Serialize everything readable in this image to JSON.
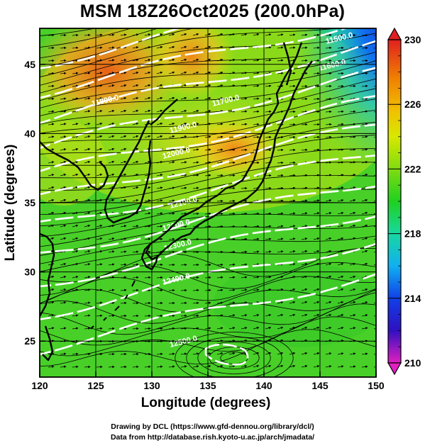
{
  "title": "MSM 18Z26Oct2025 (200.0hPa)",
  "axes": {
    "xlabel": "Longitude (degrees)",
    "ylabel": "Latitude  (degrees)",
    "x_ticks": [
      "120",
      "125",
      "130",
      "135",
      "140",
      "145",
      "150"
    ],
    "y_ticks": [
      "25",
      "30",
      "35",
      "40",
      "45"
    ],
    "xlim": [
      120,
      150
    ],
    "ylim": [
      22.4,
      47.6
    ]
  },
  "colorbar": {
    "ticks": [
      "230",
      "226",
      "222",
      "218",
      "214",
      "210"
    ],
    "range": [
      210,
      230
    ],
    "palette": [
      "#e020c0",
      "#1010c8",
      "#1060f0",
      "#10c8f0",
      "#18d890",
      "#20d020",
      "#a8e010",
      "#f0e000",
      "#f0a000",
      "#e05010",
      "#e02020"
    ]
  },
  "contours": {
    "labels": [
      "11500.0",
      "11600.0",
      "11700.0",
      "11800.0",
      "11900.0",
      "12000.0",
      "12100.0",
      "12200.0",
      "12300.0",
      "12400.0",
      "12500.0"
    ]
  },
  "footer": {
    "line1": "Drawing by DCL (https://www.gfd-dennou.org/library/dcl/)",
    "line2": "Data from http://database.rish.kyoto-u.ac.jp/arch/jmadata/"
  }
}
